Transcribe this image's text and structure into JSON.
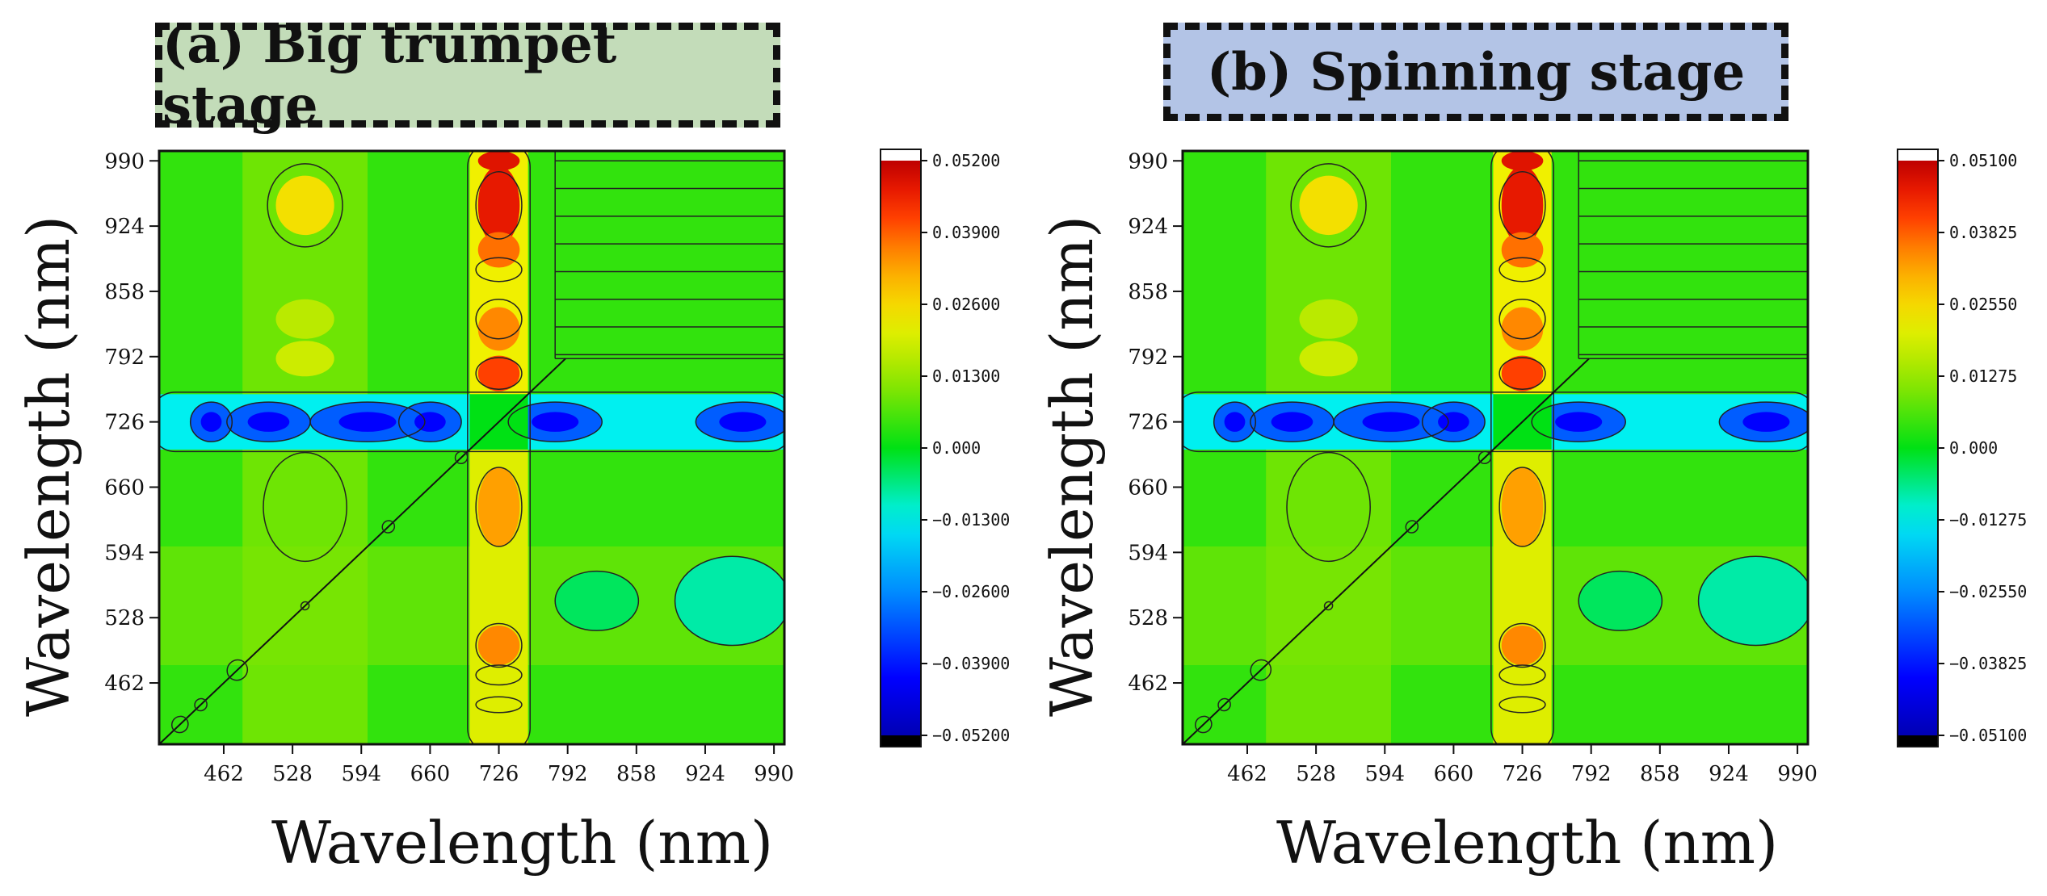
{
  "chart_data": [
    {
      "type": "heatmap",
      "subtype": "2D synchronous correlation contour map",
      "title": "(a) Big trumpet stage",
      "title_color": "#c3dcb9",
      "xlabel": "Wavelength (nm)",
      "ylabel": "Wavelength (nm)",
      "xlim": [
        400,
        1000
      ],
      "ylim": [
        400,
        1000
      ],
      "x_ticks": [
        "462",
        "528",
        "594",
        "660",
        "726",
        "792",
        "858",
        "924",
        "990"
      ],
      "y_ticks": [
        "990",
        "924",
        "858",
        "792",
        "726",
        "660",
        "594",
        "528",
        "462"
      ],
      "colorbar_ticks": [
        "0.05200",
        "0.03900",
        "0.02600",
        "0.01300",
        "0.000",
        "−0.01300",
        "−0.02600",
        "−0.03900",
        "−0.05200"
      ],
      "colorbar_range": [
        -0.052,
        0.052
      ],
      "features": {
        "positive_band_center_nm": 726,
        "negative_band_center_nm": 726,
        "auto_peak_max_nm": 945,
        "secondary_positive_band_nm": 540
      }
    },
    {
      "type": "heatmap",
      "subtype": "2D synchronous correlation contour map",
      "title": "(b) Spinning stage",
      "title_color": "#b3c4e6",
      "xlabel": "Wavelength (nm)",
      "ylabel": "Wavelength (nm)",
      "xlim": [
        400,
        1000
      ],
      "ylim": [
        400,
        1000
      ],
      "x_ticks": [
        "462",
        "528",
        "594",
        "660",
        "726",
        "792",
        "858",
        "924",
        "990"
      ],
      "y_ticks": [
        "990",
        "924",
        "858",
        "792",
        "726",
        "660",
        "594",
        "528",
        "462"
      ],
      "colorbar_ticks": [
        "0.05100",
        "0.03825",
        "0.02550",
        "0.01275",
        "0.000",
        "−0.01275",
        "−0.02550",
        "−0.03825",
        "−0.05100"
      ],
      "colorbar_range": [
        -0.051,
        0.051
      ],
      "features": {
        "positive_band_center_nm": 726,
        "negative_band_center_nm": 726,
        "auto_peak_max_nm": 945,
        "secondary_positive_band_nm": 540
      }
    }
  ]
}
